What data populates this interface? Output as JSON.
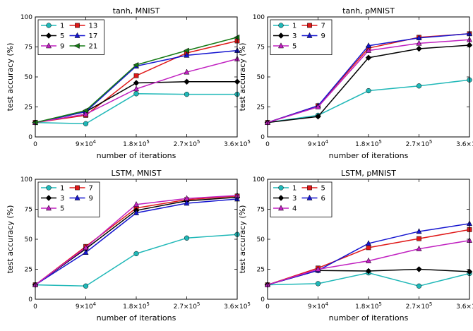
{
  "chart_data": [
    {
      "type": "line",
      "title": "tanh, MNIST",
      "xlabel": "number of iterations",
      "ylabel": "test accuracy (%)",
      "x": [
        0,
        90000,
        180000,
        270000,
        360000
      ],
      "xtick_labels": [
        {
          "base": "0",
          "exp": ""
        },
        {
          "base": "9×10",
          "exp": "4"
        },
        {
          "base": "1.8×10",
          "exp": "5"
        },
        {
          "base": "2.7×10",
          "exp": "5"
        },
        {
          "base": "3.6×10",
          "exp": "5"
        }
      ],
      "yticks": [
        0,
        25,
        50,
        75,
        100
      ],
      "ylim": [
        0,
        100
      ],
      "legend_position": "top-left",
      "legend_columns": 2,
      "series": [
        {
          "name": "1",
          "color": "#20b8b8",
          "marker": "circle",
          "values": [
            12,
            11,
            36,
            35.5,
            35.5
          ]
        },
        {
          "name": "13",
          "color": "#e01818",
          "marker": "square",
          "values": [
            12,
            18,
            51,
            70,
            80
          ]
        },
        {
          "name": "5",
          "color": "#000000",
          "marker": "diamond",
          "values": [
            12,
            21,
            45,
            46,
            46
          ]
        },
        {
          "name": "17",
          "color": "#1515d0",
          "marker": "triangle-up",
          "values": [
            12,
            21,
            59,
            68,
            72
          ]
        },
        {
          "name": "9",
          "color": "#c020c0",
          "marker": "triangle-up",
          "values": [
            12,
            19,
            40,
            54,
            65
          ]
        },
        {
          "name": "21",
          "color": "#157a15",
          "marker": "triangle-left",
          "values": [
            12,
            22,
            60,
            72,
            83
          ]
        }
      ]
    },
    {
      "type": "line",
      "title": "tanh, pMNIST",
      "xlabel": "number of iterations",
      "ylabel": "test accuracy (%)",
      "x": [
        0,
        90000,
        180000,
        270000,
        360000
      ],
      "xtick_labels": [
        {
          "base": "0",
          "exp": ""
        },
        {
          "base": "9×10",
          "exp": "4"
        },
        {
          "base": "1.8×10",
          "exp": "5"
        },
        {
          "base": "2.7×10",
          "exp": "5"
        },
        {
          "base": "3.6×10",
          "exp": "5"
        }
      ],
      "yticks": [
        0,
        25,
        50,
        75,
        100
      ],
      "ylim": [
        0,
        100
      ],
      "legend_position": "top-left",
      "legend_columns": 2,
      "series": [
        {
          "name": "1",
          "color": "#20b8b8",
          "marker": "circle",
          "values": [
            12,
            18,
            38.5,
            42.5,
            47.5
          ]
        },
        {
          "name": "7",
          "color": "#e01818",
          "marker": "square",
          "values": [
            12,
            26,
            74,
            83,
            86
          ]
        },
        {
          "name": "3",
          "color": "#000000",
          "marker": "diamond",
          "values": [
            12,
            17,
            66,
            73.5,
            76.5
          ]
        },
        {
          "name": "9",
          "color": "#1515d0",
          "marker": "triangle-up",
          "values": [
            12,
            26,
            76,
            82.5,
            86
          ]
        },
        {
          "name": "5",
          "color": "#c020c0",
          "marker": "triangle-up",
          "values": [
            12,
            25,
            72,
            78,
            81
          ]
        }
      ]
    },
    {
      "type": "line",
      "title": "LSTM, MNIST",
      "xlabel": "number of iterations",
      "ylabel": "test accuracy (%)",
      "x": [
        0,
        90000,
        180000,
        270000,
        360000
      ],
      "xtick_labels": [
        {
          "base": "0",
          "exp": ""
        },
        {
          "base": "9×10",
          "exp": "4"
        },
        {
          "base": "1.8×10",
          "exp": "5"
        },
        {
          "base": "2.7×10",
          "exp": "5"
        },
        {
          "base": "3.6×10",
          "exp": "5"
        }
      ],
      "yticks": [
        0,
        25,
        50,
        75,
        100
      ],
      "ylim": [
        0,
        100
      ],
      "legend_position": "top-left",
      "legend_columns": 2,
      "series": [
        {
          "name": "1",
          "color": "#20b8b8",
          "marker": "circle",
          "values": [
            12,
            11,
            38,
            51,
            54
          ]
        },
        {
          "name": "7",
          "color": "#e01818",
          "marker": "square",
          "values": [
            12,
            44,
            76,
            83,
            86
          ]
        },
        {
          "name": "3",
          "color": "#000000",
          "marker": "diamond",
          "values": [
            12,
            42,
            74,
            82,
            85
          ]
        },
        {
          "name": "9",
          "color": "#1515d0",
          "marker": "triangle-up",
          "values": [
            12,
            39,
            72,
            80,
            83.5
          ]
        },
        {
          "name": "5",
          "color": "#c020c0",
          "marker": "triangle-up",
          "values": [
            12,
            43,
            79,
            84,
            86.5
          ]
        }
      ]
    },
    {
      "type": "line",
      "title": "LSTM, pMNIST",
      "xlabel": "number of iterations",
      "ylabel": "test accuracy (%)",
      "x": [
        0,
        90000,
        180000,
        270000,
        360000
      ],
      "xtick_labels": [
        {
          "base": "0",
          "exp": ""
        },
        {
          "base": "9×10",
          "exp": "4"
        },
        {
          "base": "1.8×10",
          "exp": "5"
        },
        {
          "base": "2.7×10",
          "exp": "5"
        },
        {
          "base": "3.6×10",
          "exp": "5"
        }
      ],
      "yticks": [
        0,
        25,
        50,
        75,
        100
      ],
      "ylim": [
        0,
        100
      ],
      "legend_position": "top-left",
      "legend_columns": 2,
      "series": [
        {
          "name": "1",
          "color": "#20b8b8",
          "marker": "circle",
          "values": [
            12,
            13,
            22,
            11,
            21.5
          ]
        },
        {
          "name": "5",
          "color": "#e01818",
          "marker": "square",
          "values": [
            12,
            26,
            43,
            50.5,
            58
          ]
        },
        {
          "name": "3",
          "color": "#000000",
          "marker": "diamond",
          "values": [
            12,
            24,
            23.5,
            25,
            23
          ]
        },
        {
          "name": "6",
          "color": "#1515d0",
          "marker": "triangle-up",
          "values": [
            12,
            24,
            46.5,
            56.5,
            63
          ]
        },
        {
          "name": "4",
          "color": "#c020c0",
          "marker": "triangle-up",
          "values": [
            12,
            25,
            32,
            42,
            49
          ]
        }
      ]
    }
  ]
}
